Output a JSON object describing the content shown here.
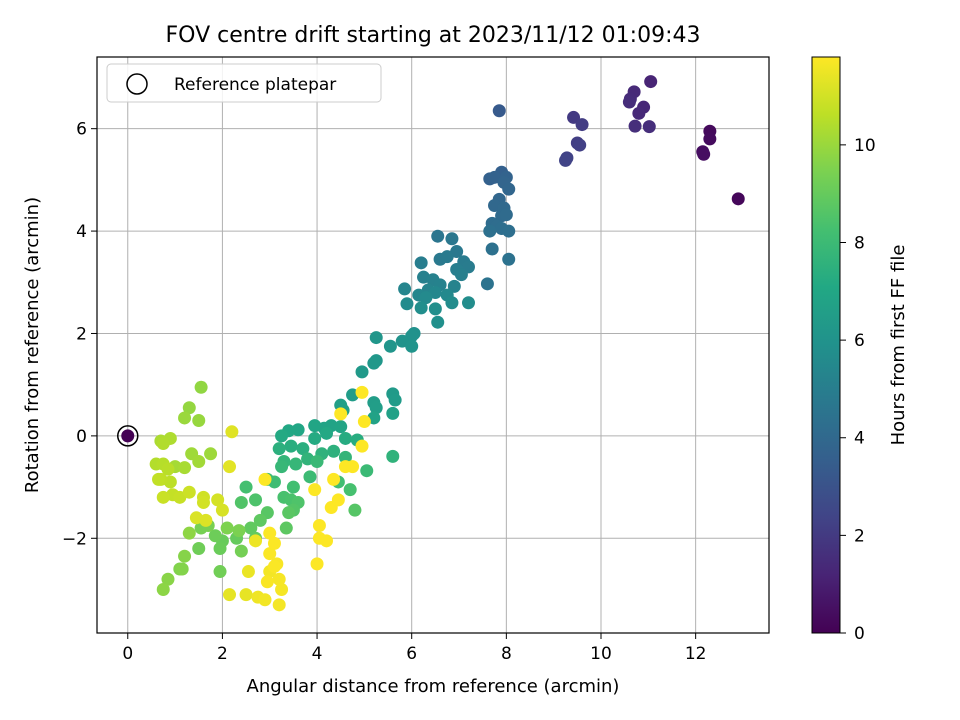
{
  "chart_data": {
    "type": "scatter",
    "title": "FOV centre drift starting at 2023/11/12 01:09:43",
    "xlabel": "Angular distance from reference (arcmin)",
    "ylabel": "Rotation from reference (arcmin)",
    "xlim": [
      -0.65,
      13.55
    ],
    "ylim": [
      -3.85,
      7.4
    ],
    "xticks": [
      0,
      2,
      4,
      6,
      8,
      10,
      12
    ],
    "yticks": [
      -2,
      0,
      2,
      4,
      6
    ],
    "grid": true,
    "legend": {
      "position": "top-left",
      "entries": [
        "Reference platepar"
      ]
    },
    "reference_point": {
      "x": 0,
      "y": 0,
      "label": "Reference platepar"
    },
    "colorbar": {
      "label": "Hours from first FF file",
      "range": [
        0,
        11.8
      ],
      "ticks": [
        0,
        2,
        4,
        6,
        8,
        10
      ],
      "colormap": "viridis"
    },
    "series_note_color_key": "c = hours from first FF file",
    "points": [
      {
        "x": 0.0,
        "y": 0.0,
        "c": 0.0
      },
      {
        "x": 12.9,
        "y": 4.63,
        "c": 0.2
      },
      {
        "x": 12.3,
        "y": 5.95,
        "c": 0.3
      },
      {
        "x": 12.3,
        "y": 5.8,
        "c": 0.35
      },
      {
        "x": 12.15,
        "y": 5.55,
        "c": 0.4
      },
      {
        "x": 12.17,
        "y": 5.5,
        "c": 0.45
      },
      {
        "x": 11.05,
        "y": 6.92,
        "c": 1.2
      },
      {
        "x": 10.9,
        "y": 6.42,
        "c": 1.3
      },
      {
        "x": 10.8,
        "y": 6.3,
        "c": 1.35
      },
      {
        "x": 10.7,
        "y": 6.72,
        "c": 1.4
      },
      {
        "x": 10.62,
        "y": 6.58,
        "c": 1.45
      },
      {
        "x": 10.6,
        "y": 6.52,
        "c": 1.5
      },
      {
        "x": 11.02,
        "y": 6.04,
        "c": 1.55
      },
      {
        "x": 10.72,
        "y": 6.05,
        "c": 1.6
      },
      {
        "x": 9.42,
        "y": 6.22,
        "c": 2.0
      },
      {
        "x": 9.6,
        "y": 6.08,
        "c": 2.1
      },
      {
        "x": 9.5,
        "y": 5.72,
        "c": 2.15
      },
      {
        "x": 9.55,
        "y": 5.68,
        "c": 2.2
      },
      {
        "x": 9.28,
        "y": 5.43,
        "c": 2.3
      },
      {
        "x": 9.25,
        "y": 5.38,
        "c": 2.35
      },
      {
        "x": 7.85,
        "y": 6.35,
        "c": 3.3
      },
      {
        "x": 7.9,
        "y": 5.15,
        "c": 3.6
      },
      {
        "x": 7.65,
        "y": 5.02,
        "c": 3.65
      },
      {
        "x": 7.75,
        "y": 5.05,
        "c": 3.7
      },
      {
        "x": 8.0,
        "y": 5.05,
        "c": 3.75
      },
      {
        "x": 7.95,
        "y": 4.95,
        "c": 3.8
      },
      {
        "x": 8.05,
        "y": 4.82,
        "c": 3.85
      },
      {
        "x": 7.85,
        "y": 4.62,
        "c": 3.9
      },
      {
        "x": 7.75,
        "y": 4.5,
        "c": 3.95
      },
      {
        "x": 7.95,
        "y": 4.45,
        "c": 4.0
      },
      {
        "x": 7.9,
        "y": 4.3,
        "c": 4.05
      },
      {
        "x": 8.0,
        "y": 4.32,
        "c": 4.1
      },
      {
        "x": 7.7,
        "y": 4.15,
        "c": 4.15
      },
      {
        "x": 7.8,
        "y": 4.1,
        "c": 4.2
      },
      {
        "x": 7.9,
        "y": 4.05,
        "c": 4.25
      },
      {
        "x": 8.05,
        "y": 4.0,
        "c": 4.3
      },
      {
        "x": 7.65,
        "y": 4.0,
        "c": 4.35
      },
      {
        "x": 7.7,
        "y": 3.65,
        "c": 4.4
      },
      {
        "x": 8.05,
        "y": 3.45,
        "c": 4.45
      },
      {
        "x": 7.6,
        "y": 2.97,
        "c": 4.5
      },
      {
        "x": 6.55,
        "y": 3.9,
        "c": 4.6
      },
      {
        "x": 6.85,
        "y": 3.85,
        "c": 4.65
      },
      {
        "x": 6.95,
        "y": 3.6,
        "c": 4.7
      },
      {
        "x": 6.6,
        "y": 3.45,
        "c": 4.75
      },
      {
        "x": 6.75,
        "y": 3.5,
        "c": 4.8
      },
      {
        "x": 7.1,
        "y": 3.4,
        "c": 4.85
      },
      {
        "x": 7.2,
        "y": 3.3,
        "c": 4.9
      },
      {
        "x": 6.2,
        "y": 3.38,
        "c": 4.95
      },
      {
        "x": 6.95,
        "y": 3.25,
        "c": 5.0
      },
      {
        "x": 7.05,
        "y": 3.15,
        "c": 5.05
      },
      {
        "x": 6.25,
        "y": 3.1,
        "c": 5.1
      },
      {
        "x": 6.45,
        "y": 3.05,
        "c": 5.15
      },
      {
        "x": 6.6,
        "y": 2.95,
        "c": 5.2
      },
      {
        "x": 6.9,
        "y": 2.92,
        "c": 5.25
      },
      {
        "x": 6.35,
        "y": 2.85,
        "c": 5.3
      },
      {
        "x": 5.85,
        "y": 2.87,
        "c": 5.35
      },
      {
        "x": 6.15,
        "y": 2.75,
        "c": 5.4
      },
      {
        "x": 6.5,
        "y": 2.8,
        "c": 5.45
      },
      {
        "x": 6.75,
        "y": 2.75,
        "c": 5.5
      },
      {
        "x": 6.3,
        "y": 2.7,
        "c": 5.55
      },
      {
        "x": 5.9,
        "y": 2.58,
        "c": 5.6
      },
      {
        "x": 6.85,
        "y": 2.6,
        "c": 5.65
      },
      {
        "x": 7.2,
        "y": 2.6,
        "c": 5.7
      },
      {
        "x": 6.2,
        "y": 2.5,
        "c": 5.75
      },
      {
        "x": 6.5,
        "y": 2.48,
        "c": 5.8
      },
      {
        "x": 6.55,
        "y": 2.22,
        "c": 5.85
      },
      {
        "x": 6.05,
        "y": 2.0,
        "c": 5.9
      },
      {
        "x": 6.0,
        "y": 1.95,
        "c": 5.95
      },
      {
        "x": 5.8,
        "y": 1.85,
        "c": 6.0
      },
      {
        "x": 6.0,
        "y": 1.75,
        "c": 6.05
      },
      {
        "x": 5.55,
        "y": 1.75,
        "c": 6.1
      },
      {
        "x": 5.25,
        "y": 1.92,
        "c": 6.15
      },
      {
        "x": 5.25,
        "y": 1.47,
        "c": 6.2
      },
      {
        "x": 5.2,
        "y": 1.42,
        "c": 6.25
      },
      {
        "x": 4.95,
        "y": 1.25,
        "c": 6.3
      },
      {
        "x": 5.6,
        "y": 0.82,
        "c": 6.35
      },
      {
        "x": 5.65,
        "y": 0.7,
        "c": 6.4
      },
      {
        "x": 4.75,
        "y": 0.8,
        "c": 6.45
      },
      {
        "x": 5.2,
        "y": 0.65,
        "c": 6.5
      },
      {
        "x": 5.25,
        "y": 0.55,
        "c": 6.55
      },
      {
        "x": 4.5,
        "y": 0.6,
        "c": 6.6
      },
      {
        "x": 4.55,
        "y": 0.5,
        "c": 6.65
      },
      {
        "x": 5.6,
        "y": 0.44,
        "c": 6.7
      },
      {
        "x": 5.2,
        "y": 0.35,
        "c": 6.75
      },
      {
        "x": 4.3,
        "y": 0.2,
        "c": 6.8
      },
      {
        "x": 4.15,
        "y": 0.15,
        "c": 6.85
      },
      {
        "x": 4.5,
        "y": 0.18,
        "c": 6.9
      },
      {
        "x": 3.95,
        "y": 0.2,
        "c": 6.95
      },
      {
        "x": 3.6,
        "y": 0.12,
        "c": 7.0
      },
      {
        "x": 3.4,
        "y": 0.1,
        "c": 7.05
      },
      {
        "x": 4.2,
        "y": 0.05,
        "c": 7.1
      },
      {
        "x": 3.25,
        "y": 0.0,
        "c": 7.15
      },
      {
        "x": 3.95,
        "y": -0.05,
        "c": 7.2
      },
      {
        "x": 4.6,
        "y": -0.05,
        "c": 7.25
      },
      {
        "x": 4.85,
        "y": -0.08,
        "c": 7.3
      },
      {
        "x": 3.45,
        "y": -0.2,
        "c": 7.35
      },
      {
        "x": 3.7,
        "y": -0.25,
        "c": 7.4
      },
      {
        "x": 3.2,
        "y": -0.25,
        "c": 7.45
      },
      {
        "x": 4.35,
        "y": -0.3,
        "c": 7.5
      },
      {
        "x": 4.1,
        "y": -0.35,
        "c": 7.55
      },
      {
        "x": 5.6,
        "y": -0.4,
        "c": 7.6
      },
      {
        "x": 3.8,
        "y": -0.45,
        "c": 7.65
      },
      {
        "x": 4.6,
        "y": -0.42,
        "c": 7.7
      },
      {
        "x": 3.3,
        "y": -0.5,
        "c": 7.75
      },
      {
        "x": 3.55,
        "y": -0.55,
        "c": 7.8
      },
      {
        "x": 3.25,
        "y": -0.6,
        "c": 7.85
      },
      {
        "x": 4.0,
        "y": -0.5,
        "c": 7.9
      },
      {
        "x": 5.05,
        "y": -0.68,
        "c": 7.95
      },
      {
        "x": 3.85,
        "y": -0.8,
        "c": 8.0
      },
      {
        "x": 2.95,
        "y": -0.85,
        "c": 8.05
      },
      {
        "x": 3.1,
        "y": -0.9,
        "c": 8.1
      },
      {
        "x": 4.45,
        "y": -0.9,
        "c": 8.15
      },
      {
        "x": 3.5,
        "y": -1.0,
        "c": 8.2
      },
      {
        "x": 2.5,
        "y": -1.0,
        "c": 8.25
      },
      {
        "x": 4.7,
        "y": -1.05,
        "c": 8.3
      },
      {
        "x": 3.3,
        "y": -1.2,
        "c": 8.35
      },
      {
        "x": 3.45,
        "y": -1.25,
        "c": 8.4
      },
      {
        "x": 2.7,
        "y": -1.25,
        "c": 8.45
      },
      {
        "x": 3.6,
        "y": -1.3,
        "c": 8.5
      },
      {
        "x": 2.4,
        "y": -1.3,
        "c": 8.55
      },
      {
        "x": 3.5,
        "y": -1.45,
        "c": 8.6
      },
      {
        "x": 4.8,
        "y": -1.45,
        "c": 8.65
      },
      {
        "x": 2.95,
        "y": -1.5,
        "c": 8.7
      },
      {
        "x": 3.4,
        "y": -1.5,
        "c": 8.75
      },
      {
        "x": 3.35,
        "y": -1.8,
        "c": 8.8
      },
      {
        "x": 2.8,
        "y": -1.65,
        "c": 8.85
      },
      {
        "x": 2.6,
        "y": -1.8,
        "c": 8.9
      },
      {
        "x": 2.7,
        "y": -2.0,
        "c": 8.95
      },
      {
        "x": 2.3,
        "y": -2.0,
        "c": 9.0
      },
      {
        "x": 2.0,
        "y": -2.05,
        "c": 9.05
      },
      {
        "x": 1.95,
        "y": -2.2,
        "c": 9.1
      },
      {
        "x": 1.85,
        "y": -1.95,
        "c": 9.15
      },
      {
        "x": 1.5,
        "y": -2.2,
        "c": 9.2
      },
      {
        "x": 1.95,
        "y": -2.65,
        "c": 9.25
      },
      {
        "x": 2.4,
        "y": -2.25,
        "c": 9.3
      },
      {
        "x": 1.55,
        "y": -1.8,
        "c": 9.35
      },
      {
        "x": 1.7,
        "y": -1.75,
        "c": 9.4
      },
      {
        "x": 2.35,
        "y": -1.85,
        "c": 9.45
      },
      {
        "x": 2.1,
        "y": -1.8,
        "c": 9.5
      },
      {
        "x": 1.1,
        "y": -2.6,
        "c": 9.55
      },
      {
        "x": 1.15,
        "y": -2.6,
        "c": 9.6
      },
      {
        "x": 1.2,
        "y": -2.35,
        "c": 9.65
      },
      {
        "x": 0.85,
        "y": -2.8,
        "c": 9.7
      },
      {
        "x": 0.75,
        "y": -3.0,
        "c": 9.75
      },
      {
        "x": 1.3,
        "y": -1.9,
        "c": 9.8
      },
      {
        "x": 1.55,
        "y": 0.95,
        "c": 9.85
      },
      {
        "x": 1.3,
        "y": 0.55,
        "c": 9.9
      },
      {
        "x": 1.5,
        "y": 0.3,
        "c": 9.95
      },
      {
        "x": 1.2,
        "y": 0.35,
        "c": 10.0
      },
      {
        "x": 1.75,
        "y": -0.35,
        "c": 10.05
      },
      {
        "x": 1.35,
        "y": -0.35,
        "c": 10.1
      },
      {
        "x": 1.5,
        "y": -0.5,
        "c": 10.15
      },
      {
        "x": 1.0,
        "y": -0.6,
        "c": 10.2
      },
      {
        "x": 1.2,
        "y": -0.62,
        "c": 10.25
      },
      {
        "x": 0.7,
        "y": -0.1,
        "c": 10.3
      },
      {
        "x": 0.9,
        "y": -0.05,
        "c": 10.35
      },
      {
        "x": 0.75,
        "y": -0.15,
        "c": 10.4
      },
      {
        "x": 0.6,
        "y": -0.55,
        "c": 10.45
      },
      {
        "x": 0.75,
        "y": -0.55,
        "c": 10.5
      },
      {
        "x": 0.85,
        "y": -0.65,
        "c": 10.55
      },
      {
        "x": 0.9,
        "y": -0.9,
        "c": 10.6
      },
      {
        "x": 0.7,
        "y": -0.85,
        "c": 10.65
      },
      {
        "x": 0.65,
        "y": -0.85,
        "c": 10.7
      },
      {
        "x": 0.95,
        "y": -1.15,
        "c": 10.75
      },
      {
        "x": 1.1,
        "y": -1.2,
        "c": 10.8
      },
      {
        "x": 0.75,
        "y": -1.2,
        "c": 10.85
      },
      {
        "x": 1.3,
        "y": -1.1,
        "c": 10.9
      },
      {
        "x": 1.6,
        "y": -1.2,
        "c": 10.95
      },
      {
        "x": 1.6,
        "y": -1.3,
        "c": 11.0
      },
      {
        "x": 1.9,
        "y": -1.25,
        "c": 11.05
      },
      {
        "x": 2.0,
        "y": -1.45,
        "c": 11.1
      },
      {
        "x": 1.45,
        "y": -1.6,
        "c": 11.15
      },
      {
        "x": 1.65,
        "y": -1.65,
        "c": 11.2
      },
      {
        "x": 2.2,
        "y": 0.08,
        "c": 11.25
      },
      {
        "x": 2.15,
        "y": -0.6,
        "c": 11.3
      },
      {
        "x": 2.15,
        "y": -3.1,
        "c": 11.35
      },
      {
        "x": 2.5,
        "y": -3.1,
        "c": 11.4
      },
      {
        "x": 2.55,
        "y": -2.65,
        "c": 11.45
      },
      {
        "x": 2.7,
        "y": -2.05,
        "c": 11.5
      },
      {
        "x": 2.75,
        "y": -3.15,
        "c": 11.55
      },
      {
        "x": 2.9,
        "y": -3.2,
        "c": 11.6
      },
      {
        "x": 3.0,
        "y": -2.65,
        "c": 11.62
      },
      {
        "x": 3.2,
        "y": -3.3,
        "c": 11.64
      },
      {
        "x": 3.25,
        "y": -3.0,
        "c": 11.66
      },
      {
        "x": 3.2,
        "y": -2.8,
        "c": 11.68
      },
      {
        "x": 3.15,
        "y": -2.5,
        "c": 11.7
      },
      {
        "x": 2.95,
        "y": -2.85,
        "c": 11.72
      },
      {
        "x": 3.1,
        "y": -2.55,
        "c": 11.74
      },
      {
        "x": 3.0,
        "y": -2.3,
        "c": 11.75
      },
      {
        "x": 3.1,
        "y": -2.1,
        "c": 11.76
      },
      {
        "x": 3.0,
        "y": -1.9,
        "c": 11.77
      },
      {
        "x": 2.9,
        "y": -0.85,
        "c": 11.78
      },
      {
        "x": 4.05,
        "y": -1.75,
        "c": 11.78
      },
      {
        "x": 4.05,
        "y": -2.0,
        "c": 11.78
      },
      {
        "x": 4.2,
        "y": -2.05,
        "c": 11.79
      },
      {
        "x": 4.0,
        "y": -2.5,
        "c": 11.79
      },
      {
        "x": 3.95,
        "y": -1.05,
        "c": 11.79
      },
      {
        "x": 4.3,
        "y": -1.4,
        "c": 11.8
      },
      {
        "x": 4.6,
        "y": -0.6,
        "c": 11.8
      },
      {
        "x": 4.75,
        "y": -0.6,
        "c": 11.8
      },
      {
        "x": 4.95,
        "y": -0.2,
        "c": 11.8
      },
      {
        "x": 4.5,
        "y": 0.43,
        "c": 11.8
      },
      {
        "x": 4.95,
        "y": 0.85,
        "c": 11.8
      },
      {
        "x": 5.0,
        "y": 0.28,
        "c": 11.8
      },
      {
        "x": 4.45,
        "y": -1.25,
        "c": 11.8
      },
      {
        "x": 4.35,
        "y": -0.85,
        "c": 11.8
      }
    ]
  }
}
